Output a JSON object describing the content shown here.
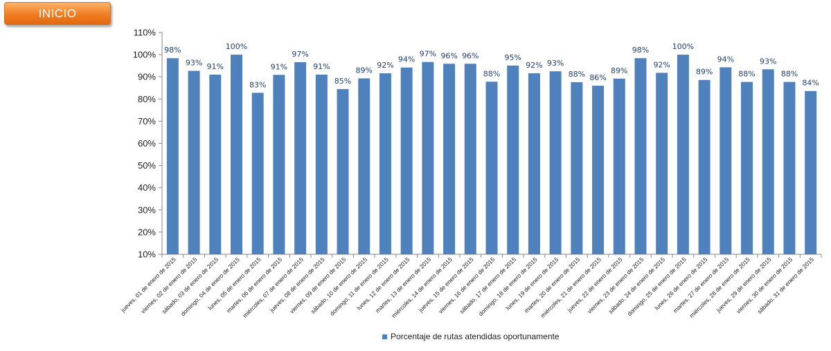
{
  "inicio_button": {
    "label": "INICIO"
  },
  "colors": {
    "bar": "#4f81bd",
    "label": "#1f3e6e",
    "axis": "#868686",
    "button": "#f07c22"
  },
  "chart_data": {
    "type": "bar",
    "title": "",
    "xlabel": "",
    "ylabel": "",
    "ylim": [
      10,
      110
    ],
    "yticks": [
      10,
      20,
      30,
      40,
      50,
      60,
      70,
      80,
      90,
      100,
      110
    ],
    "ytick_labels": [
      "10%",
      "20%",
      "30%",
      "40%",
      "50%",
      "60%",
      "70%",
      "80%",
      "90%",
      "100%",
      "110%"
    ],
    "grid": false,
    "legend_position": "bottom",
    "categories": [
      "jueves, 01 de enero de 2015",
      "viernes, 02 de enero de 2015",
      "sábado, 03 de enero de 2015",
      "domingo, 04 de enero de 2015",
      "lunes, 05 de enero de 2015",
      "martes, 06 de enero de 2015",
      "miércoles, 07 de enero de 2015",
      "jueves, 08 de enero de 2015",
      "viernes, 09 de enero de 2015",
      "sábado, 10 de enero de 2015",
      "domingo, 11 de enero de 2015",
      "lunes, 12 de enero de 2015",
      "martes, 13 de enero de 2015",
      "miércoles, 14 de enero de 2015",
      "jueves, 15 de enero de 2015",
      "viernes, 16 de enero de 2015",
      "sábado, 17 de enero de 2015",
      "domingo, 18 de enero de 2015",
      "lunes, 19 de enero de 2015",
      "martes, 20 de enero de 2015",
      "miércoles, 21 de enero de 2015",
      "jueves, 22 de enero de 2015",
      "viernes, 23 de enero de 2015",
      "sábado, 24 de enero de 2015",
      "domingo, 25 de enero de 2015",
      "lunes, 26 de enero de 2015",
      "martes, 27 de enero de 2015",
      "miércoles, 28 de enero de 2015",
      "jueves, 29 de enero de 2015",
      "viernes, 30 de enero de 2015",
      "sábado, 31 de enero de 2015"
    ],
    "series": [
      {
        "name": "Porcentaje de rutas atendidas oportunamente",
        "values": [
          98.4,
          92.7,
          91.0,
          100,
          82.8,
          90.9,
          96.6,
          91.0,
          84.5,
          89.3,
          91.6,
          94.2,
          96.7,
          95.9,
          95.9,
          87.8,
          95.1,
          91.6,
          92.5,
          87.6,
          86.0,
          89.2,
          98.4,
          91.8,
          100,
          88.6,
          94.3,
          87.7,
          93.4,
          87.7,
          83.6
        ],
        "labels": [
          "98%",
          "93%",
          "91%",
          "100%",
          "83%",
          "91%",
          "97%",
          "91%",
          "85%",
          "89%",
          "92%",
          "94%",
          "97%",
          "96%",
          "96%",
          "88%",
          "95%",
          "92%",
          "93%",
          "88%",
          "86%",
          "89%",
          "98%",
          "92%",
          "100%",
          "89%",
          "94%",
          "88%",
          "93%",
          "88%",
          "84%"
        ]
      }
    ]
  }
}
